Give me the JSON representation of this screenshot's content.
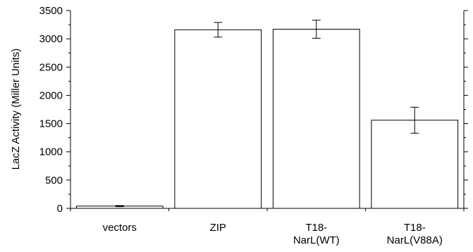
{
  "chart_data": {
    "type": "bar",
    "title": "",
    "xlabel": "",
    "ylabel": "LacZ Activity (Miller Units)",
    "ylim": [
      0,
      3500
    ],
    "yticks": [
      "0",
      "500",
      "1000",
      "1500",
      "2000",
      "2500",
      "3000",
      "3500"
    ],
    "y_minor_step": 250,
    "grid": false,
    "categories": [
      {
        "lines": [
          "vectors"
        ]
      },
      {
        "lines": [
          "ZIP"
        ]
      },
      {
        "lines": [
          "T18-",
          "NarL(WT)"
        ]
      },
      {
        "lines": [
          "T18-",
          "NarL(V88A)"
        ]
      }
    ],
    "values": [
      40,
      3160,
      3170,
      1560
    ],
    "errors": [
      10,
      130,
      160,
      230
    ],
    "bar_fill": "#ffffff",
    "bar_stroke": "#000000"
  }
}
